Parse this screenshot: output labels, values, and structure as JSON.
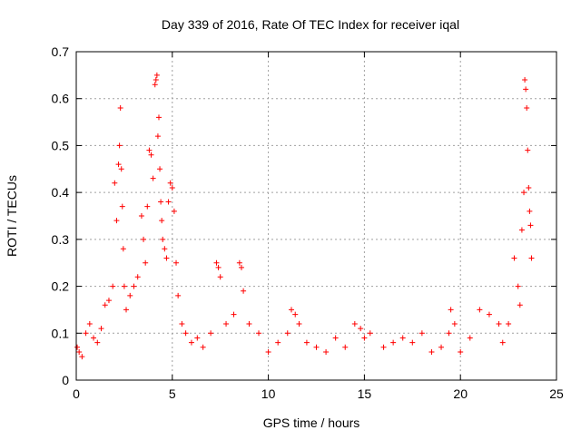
{
  "chart_data": {
    "type": "scatter",
    "title": "Day 339 of 2016, Rate Of TEC Index for receiver iqal",
    "xlabel": "GPS time / hours",
    "ylabel": "ROTI / TECUs",
    "xlim": [
      0,
      25
    ],
    "ylim": [
      0,
      0.7
    ],
    "x_ticks": [
      0,
      5,
      10,
      15,
      20,
      25
    ],
    "y_ticks": [
      0,
      0.1,
      0.2,
      0.3,
      0.4,
      0.5,
      0.6,
      0.7
    ],
    "grid": true,
    "legend": "none",
    "marker": "plus",
    "color": "#ff0000",
    "series": [
      {
        "x": [
          0.05,
          0.15,
          0.3,
          0.5,
          0.7,
          0.9,
          1.1,
          1.3,
          1.5,
          1.7,
          1.9,
          2.0,
          2.1,
          2.2,
          2.25,
          2.3,
          2.35,
          2.4,
          2.45,
          2.5,
          2.6,
          2.8,
          3.0,
          3.2,
          3.4,
          3.5,
          3.6,
          3.7,
          3.8,
          3.9,
          4.0,
          4.1,
          4.15,
          4.2,
          4.25,
          4.3,
          4.35,
          4.4,
          4.45,
          4.5,
          4.6,
          4.7,
          4.8,
          4.9,
          5.0,
          5.1,
          5.2,
          5.3,
          5.5,
          5.7,
          6.0,
          6.3,
          6.6,
          7.0,
          7.3,
          7.4,
          7.5,
          7.8,
          8.2,
          8.5,
          8.6,
          8.7,
          9.0,
          9.5,
          10.0,
          10.5,
          11.0,
          11.2,
          11.4,
          11.6,
          12.0,
          12.5,
          13.0,
          13.5,
          14.0,
          14.5,
          14.8,
          15.0,
          15.3,
          16.0,
          16.5,
          17.0,
          17.5,
          18.0,
          18.5,
          19.0,
          19.4,
          19.5,
          19.7,
          20.0,
          20.5,
          21.0,
          21.5,
          22.0,
          22.2,
          22.5,
          22.8,
          23.0,
          23.1,
          23.2,
          23.3,
          23.35,
          23.4,
          23.45,
          23.5,
          23.55,
          23.6,
          23.65,
          23.7
        ],
        "y": [
          0.07,
          0.06,
          0.05,
          0.1,
          0.12,
          0.09,
          0.08,
          0.11,
          0.16,
          0.17,
          0.2,
          0.42,
          0.34,
          0.46,
          0.5,
          0.58,
          0.45,
          0.37,
          0.28,
          0.2,
          0.15,
          0.18,
          0.2,
          0.22,
          0.35,
          0.3,
          0.25,
          0.37,
          0.49,
          0.48,
          0.43,
          0.63,
          0.64,
          0.65,
          0.52,
          0.56,
          0.45,
          0.38,
          0.34,
          0.3,
          0.28,
          0.26,
          0.38,
          0.42,
          0.41,
          0.36,
          0.25,
          0.18,
          0.12,
          0.1,
          0.08,
          0.09,
          0.07,
          0.1,
          0.25,
          0.24,
          0.22,
          0.12,
          0.14,
          0.25,
          0.24,
          0.19,
          0.12,
          0.1,
          0.06,
          0.08,
          0.1,
          0.15,
          0.14,
          0.12,
          0.08,
          0.07,
          0.06,
          0.09,
          0.07,
          0.12,
          0.11,
          0.09,
          0.1,
          0.07,
          0.08,
          0.09,
          0.08,
          0.1,
          0.06,
          0.07,
          0.1,
          0.15,
          0.12,
          0.06,
          0.09,
          0.15,
          0.14,
          0.12,
          0.08,
          0.12,
          0.26,
          0.2,
          0.16,
          0.32,
          0.4,
          0.64,
          0.62,
          0.58,
          0.49,
          0.41,
          0.36,
          0.33,
          0.26
        ]
      }
    ]
  }
}
